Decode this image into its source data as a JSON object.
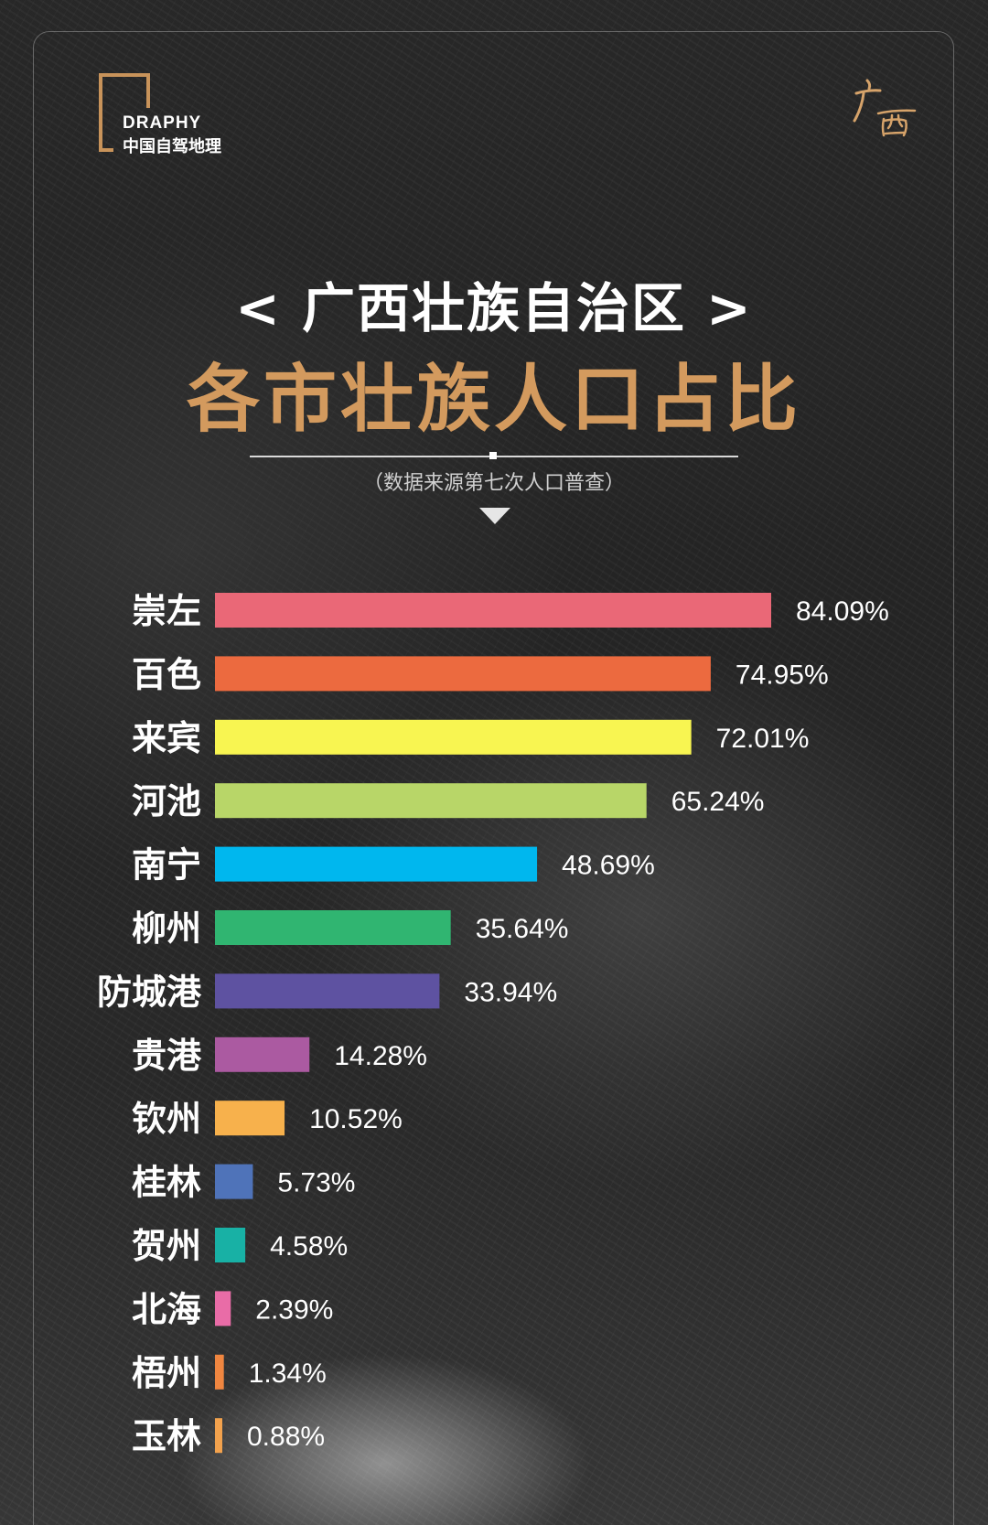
{
  "header": {
    "logo_en": "DRAPHY",
    "logo_cn": "中国自驾地理",
    "brush_text": "广西",
    "title_line1": "< 广西壮族自治区 >",
    "title_line2": "各市壮族人口占比",
    "source": "（数据来源第七次人口普查）"
  },
  "chart_data": {
    "type": "bar",
    "orientation": "horizontal",
    "title": "各市壮族人口占比",
    "xlabel": "",
    "ylabel": "",
    "xlim": [
      0,
      100
    ],
    "grid": false,
    "categories": [
      "崇左",
      "百色",
      "来宾",
      "河池",
      "南宁",
      "柳州",
      "防城港",
      "贵港",
      "钦州",
      "桂林",
      "贺州",
      "北海",
      "梧州",
      "玉林"
    ],
    "values": [
      84.09,
      74.95,
      72.01,
      65.24,
      48.69,
      35.64,
      33.94,
      14.28,
      10.52,
      5.73,
      4.58,
      2.39,
      1.34,
      0.88
    ],
    "labels": [
      "84.09%",
      "74.95%",
      "72.01%",
      "65.24%",
      "48.69%",
      "35.64%",
      "33.94%",
      "14.28%",
      "10.52%",
      "5.73%",
      "4.58%",
      "2.39%",
      "1.34%",
      "0.88%"
    ],
    "colors": [
      "#ea6877",
      "#ec6a3f",
      "#f8f551",
      "#b8d668",
      "#00b7ee",
      "#30b571",
      "#5e52a1",
      "#ab5aa1",
      "#f7b14c",
      "#4f73b9",
      "#18b1a5",
      "#e96ca7",
      "#f08640",
      "#f3a24d"
    ]
  }
}
